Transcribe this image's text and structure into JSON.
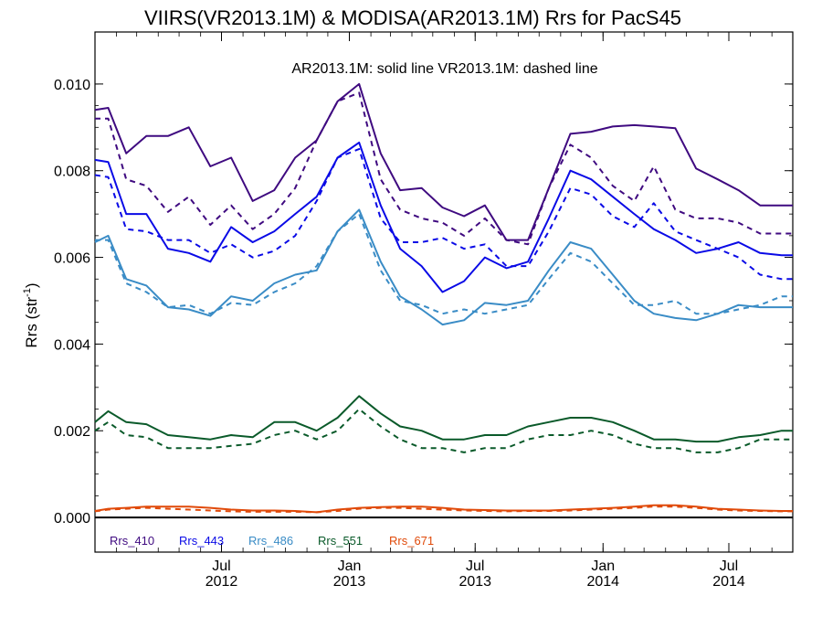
{
  "chart_data": {
    "type": "line",
    "title": "VIIRS(VR2013.1M) & MODISA(AR2013.1M)  Rrs for PacS45",
    "annotation": "AR2013.1M: solid line   VR2013.1M: dashed line",
    "ylabel": "Rrs (str",
    "ylabel_sup": "-1",
    "ylabel_close": ")",
    "ylim": [
      -0.0008,
      0.0112
    ],
    "yticks": [
      {
        "value": 0.0,
        "label": "0.000"
      },
      {
        "value": 0.002,
        "label": "0.002"
      },
      {
        "value": 0.004,
        "label": "0.004"
      },
      {
        "value": 0.006,
        "label": "0.006"
      },
      {
        "value": 0.008,
        "label": "0.008"
      },
      {
        "value": 0.01,
        "label": "0.010"
      }
    ],
    "xlim": [
      "2012-01-01",
      "2014-10-01"
    ],
    "xticks": [
      {
        "date": "2012-07-01",
        "label": "Jul",
        "label2": "2012"
      },
      {
        "date": "2013-01-01",
        "label": "Jan",
        "label2": "2013"
      },
      {
        "date": "2013-07-01",
        "label": "Jul",
        "label2": "2013"
      },
      {
        "date": "2014-01-01",
        "label": "Jan",
        "label2": "2014"
      },
      {
        "date": "2014-07-01",
        "label": "Jul",
        "label2": "2014"
      }
    ],
    "x": [
      "2012-01-01",
      "2012-01-20",
      "2012-02-15",
      "2012-03-15",
      "2012-04-15",
      "2012-05-15",
      "2012-06-15",
      "2012-07-15",
      "2012-08-15",
      "2012-09-15",
      "2012-10-15",
      "2012-11-15",
      "2012-12-15",
      "2013-01-15",
      "2013-02-15",
      "2013-03-15",
      "2013-04-15",
      "2013-05-15",
      "2013-06-15",
      "2013-07-15",
      "2013-08-15",
      "2013-09-15",
      "2013-10-15",
      "2013-11-15",
      "2013-12-15",
      "2014-01-15",
      "2014-02-15",
      "2014-03-15",
      "2014-04-15",
      "2014-05-15",
      "2014-06-15",
      "2014-07-15",
      "2014-08-15",
      "2014-09-15",
      "2014-10-01"
    ],
    "series": [
      {
        "name": "Rrs_410",
        "color": "#3f0a80",
        "solid": [
          0.0094,
          0.00945,
          0.0084,
          0.0088,
          0.0088,
          0.009,
          0.0081,
          0.0083,
          0.0073,
          0.00755,
          0.0083,
          0.0087,
          0.0096,
          0.01,
          0.0084,
          0.00755,
          0.0076,
          0.00715,
          0.00695,
          0.0072,
          0.0064,
          0.0064,
          0.0076,
          0.00885,
          0.0089,
          0.00902,
          0.00905,
          0.00902,
          0.00898,
          0.00805,
          0.0078,
          0.00755,
          0.0072,
          0.0072,
          0.0072
        ],
        "dashed": [
          0.0092,
          0.0092,
          0.0078,
          0.00765,
          0.00705,
          0.0074,
          0.00675,
          0.0072,
          0.00665,
          0.007,
          0.0076,
          0.0087,
          0.0096,
          0.0098,
          0.0078,
          0.0071,
          0.0069,
          0.0068,
          0.0065,
          0.0069,
          0.0064,
          0.0063,
          0.0076,
          0.0086,
          0.0083,
          0.00765,
          0.0073,
          0.0081,
          0.0071,
          0.0069,
          0.0069,
          0.0068,
          0.00655,
          0.00655,
          0.00655
        ]
      },
      {
        "name": "Rrs_443",
        "color": "#0a0ae6",
        "solid": [
          0.00825,
          0.0082,
          0.007,
          0.007,
          0.0062,
          0.0061,
          0.0059,
          0.0067,
          0.00635,
          0.0066,
          0.007,
          0.0074,
          0.0083,
          0.00865,
          0.0072,
          0.0062,
          0.0058,
          0.0052,
          0.00545,
          0.006,
          0.00575,
          0.0059,
          0.0069,
          0.008,
          0.0078,
          0.0074,
          0.007,
          0.00665,
          0.0064,
          0.0061,
          0.0062,
          0.00635,
          0.0061,
          0.00605,
          0.00605
        ],
        "dashed": [
          0.0079,
          0.00785,
          0.00665,
          0.0066,
          0.0064,
          0.0064,
          0.0061,
          0.0063,
          0.006,
          0.00615,
          0.0065,
          0.0073,
          0.0083,
          0.0085,
          0.0069,
          0.00635,
          0.00635,
          0.00645,
          0.0062,
          0.0063,
          0.0058,
          0.0058,
          0.0066,
          0.0076,
          0.00745,
          0.00695,
          0.0067,
          0.00725,
          0.0066,
          0.0064,
          0.0062,
          0.006,
          0.0056,
          0.0055,
          0.0055
        ]
      },
      {
        "name": "Rrs_486",
        "color": "#3a8cc6",
        "solid": [
          0.00635,
          0.0065,
          0.0055,
          0.00535,
          0.00485,
          0.0048,
          0.00465,
          0.0051,
          0.005,
          0.0054,
          0.0056,
          0.0057,
          0.0066,
          0.0071,
          0.0059,
          0.0051,
          0.0048,
          0.00445,
          0.00455,
          0.00495,
          0.0049,
          0.005,
          0.0057,
          0.00635,
          0.0062,
          0.0056,
          0.005,
          0.0047,
          0.0046,
          0.00455,
          0.0047,
          0.0049,
          0.00485,
          0.00485,
          0.00485
        ],
        "dashed": [
          0.0064,
          0.0064,
          0.0054,
          0.0052,
          0.00485,
          0.0049,
          0.0047,
          0.00495,
          0.0049,
          0.0052,
          0.0054,
          0.0058,
          0.0066,
          0.007,
          0.0057,
          0.005,
          0.0049,
          0.0047,
          0.0048,
          0.0047,
          0.0048,
          0.0049,
          0.0055,
          0.0061,
          0.0059,
          0.0054,
          0.0049,
          0.0049,
          0.005,
          0.0047,
          0.0047,
          0.0048,
          0.0049,
          0.0051,
          0.0051
        ]
      },
      {
        "name": "Rrs_551",
        "color": "#0a5a2a",
        "solid": [
          0.0022,
          0.00245,
          0.0022,
          0.00215,
          0.0019,
          0.00185,
          0.0018,
          0.0019,
          0.00185,
          0.0022,
          0.0022,
          0.002,
          0.0023,
          0.0028,
          0.0024,
          0.0021,
          0.002,
          0.0018,
          0.0018,
          0.0019,
          0.0019,
          0.0021,
          0.0022,
          0.0023,
          0.0023,
          0.0022,
          0.002,
          0.0018,
          0.0018,
          0.00175,
          0.00175,
          0.00185,
          0.0019,
          0.002,
          0.002
        ],
        "dashed": [
          0.002,
          0.0022,
          0.0019,
          0.00185,
          0.0016,
          0.0016,
          0.0016,
          0.00165,
          0.0017,
          0.0019,
          0.002,
          0.0018,
          0.002,
          0.0025,
          0.0021,
          0.0018,
          0.0016,
          0.0016,
          0.0015,
          0.0016,
          0.0016,
          0.0018,
          0.0019,
          0.0019,
          0.002,
          0.0019,
          0.0017,
          0.0016,
          0.0016,
          0.0015,
          0.0015,
          0.0016,
          0.0018,
          0.0018,
          0.0018
        ]
      },
      {
        "name": "Rrs_671",
        "color": "#e04a0a",
        "solid": [
          0.00015,
          0.0002,
          0.00022,
          0.00025,
          0.00025,
          0.00025,
          0.00022,
          0.00018,
          0.00016,
          0.00016,
          0.00015,
          0.00012,
          0.00018,
          0.00022,
          0.00024,
          0.00025,
          0.00025,
          0.00022,
          0.00018,
          0.00017,
          0.00016,
          0.00016,
          0.00016,
          0.00018,
          0.0002,
          0.00022,
          0.00025,
          0.00028,
          0.00028,
          0.00025,
          0.0002,
          0.00018,
          0.00016,
          0.00015,
          0.00015
        ],
        "dashed": [
          0.00014,
          0.00018,
          0.0002,
          0.00022,
          0.0002,
          0.00018,
          0.00016,
          0.00014,
          0.00013,
          0.00013,
          0.00013,
          0.00012,
          0.00015,
          0.0002,
          0.00022,
          0.00022,
          0.0002,
          0.00018,
          0.00016,
          0.00015,
          0.00014,
          0.00015,
          0.00015,
          0.00016,
          0.00018,
          0.0002,
          0.00022,
          0.00025,
          0.00025,
          0.00022,
          0.00018,
          0.00016,
          0.00015,
          0.00014,
          0.00014
        ]
      }
    ],
    "legend": [
      "Rrs_410",
      "Rrs_443",
      "Rrs_486",
      "Rrs_551",
      "Rrs_671"
    ],
    "legend_placement": "bottom-left, inside plot below zero line",
    "zero_line": true,
    "grid": false
  }
}
